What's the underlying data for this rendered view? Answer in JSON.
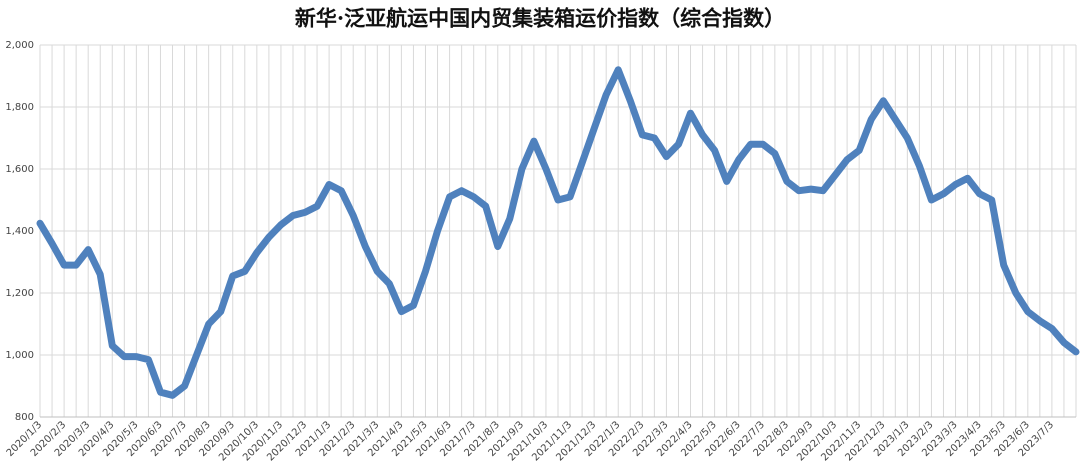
{
  "chart_data": {
    "type": "line",
    "title": "新华·泛亚航运中国内贸集装箱运价指数（综合指数）",
    "categories": [
      "2020/1/3",
      null,
      "2020/2/3",
      null,
      "2020/3/3",
      null,
      "2020/4/3",
      null,
      "2020/5/3",
      null,
      "2020/6/3",
      null,
      "2020/7/3",
      null,
      "2020/8/3",
      null,
      "2020/9/3",
      null,
      "2020/10/3",
      null,
      "2020/11/3",
      null,
      "2020/12/3",
      null,
      "2021/1/3",
      null,
      "2021/2/3",
      null,
      "2021/3/3",
      null,
      "2021/4/3",
      null,
      "2021/5/3",
      null,
      "2021/6/3",
      null,
      "2021/7/3",
      null,
      "2021/8/3",
      null,
      "2021/9/3",
      null,
      "2021/10/3",
      null,
      "2021/11/3",
      null,
      "2021/12/3",
      null,
      "2022/1/3",
      null,
      "2022/2/3",
      null,
      "2022/3/3",
      null,
      "2022/4/3",
      null,
      "2022/5/3",
      null,
      "2022/6/3",
      null,
      "2022/7/3",
      null,
      "2022/8/3",
      null,
      "2022/9/3",
      null,
      "2022/10/3",
      null,
      "2022/11/3",
      null,
      "2022/12/3",
      null,
      "2023/1/3",
      null,
      "2023/2/3",
      null,
      "2023/3/3",
      null,
      "2023/4/3",
      null,
      "2023/5/3",
      null,
      "2023/6/3",
      null,
      "2023/7/3",
      null,
      null
    ],
    "values": [
      1425,
      1360,
      1290,
      1290,
      1340,
      1260,
      1030,
      995,
      995,
      985,
      880,
      870,
      900,
      1000,
      1100,
      1140,
      1255,
      1270,
      1330,
      1380,
      1420,
      1450,
      1460,
      1480,
      1550,
      1530,
      1450,
      1350,
      1270,
      1230,
      1140,
      1160,
      1270,
      1400,
      1510,
      1530,
      1510,
      1480,
      1350,
      1440,
      1600,
      1690,
      1600,
      1500,
      1510,
      1620,
      1730,
      1840,
      1920,
      1820,
      1710,
      1700,
      1640,
      1680,
      1780,
      1710,
      1660,
      1560,
      1630,
      1680,
      1680,
      1650,
      1560,
      1530,
      1535,
      1530,
      1580,
      1630,
      1660,
      1760,
      1820,
      1760,
      1700,
      1610,
      1500,
      1520,
      1550,
      1570,
      1520,
      1500,
      1290,
      1200,
      1140,
      1110,
      1085,
      1040,
      1010
    ],
    "color": "#4f81bd",
    "ylim": [
      800,
      2000
    ],
    "yticks": [
      800,
      {
        "value": 1000,
        "label": "1,000"
      },
      {
        "value": 1200,
        "label": "1,200"
      },
      {
        "value": 1400,
        "label": "1,400"
      },
      {
        "value": 1600,
        "label": "1,600"
      },
      {
        "value": 1800,
        "label": "1,800"
      },
      {
        "value": 2000,
        "label": "2,000"
      }
    ],
    "grid": true
  }
}
